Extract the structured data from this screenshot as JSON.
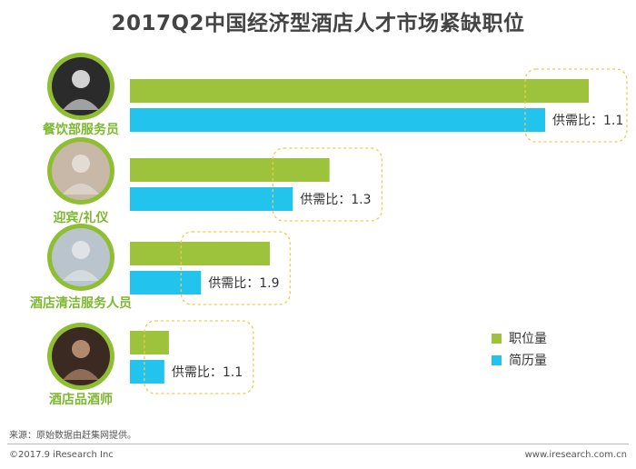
{
  "title": "2017Q2中国经济型酒店人才市场紧缺职位",
  "chart_data": {
    "type": "bar",
    "orientation": "horizontal",
    "categories": [
      "餐饮部服务员",
      "迎宾/礼仪",
      "酒店清洁服务人员",
      "酒店品酒师"
    ],
    "series": [
      {
        "name": "职位量",
        "color": "#9dc23b",
        "values": [
          100,
          43.5,
          30.5,
          8.5
        ]
      },
      {
        "name": "简历量",
        "color": "#22c4ee",
        "values": [
          90.5,
          35.5,
          15.5,
          7.5
        ]
      }
    ],
    "ratio_labels": [
      "供需比：1.1",
      "供需比：1.3",
      "供需比：1.9",
      "供需比：1.1"
    ],
    "xlim": [
      0,
      100
    ],
    "legend_position": "bottom-right",
    "grid": false
  },
  "icons": [
    "waiter-photo-icon",
    "receptionist-photo-icon",
    "cleaner-photo-icon",
    "sommelier-photo-icon"
  ],
  "footer": {
    "source": "来源：原始数据由赶集网提供。",
    "copyright": "©2017.9 iResearch Inc",
    "website": "www.iresearch.com.cn"
  }
}
